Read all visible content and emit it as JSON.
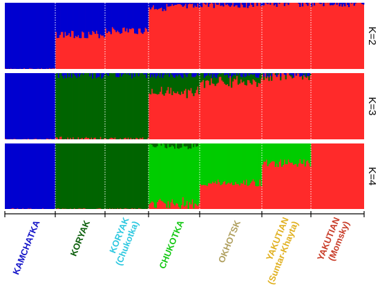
{
  "chart_data": {
    "type": "stacked-bar",
    "description_units": "admixture proportion (0-1) per individual",
    "populations": [
      {
        "label": "KAMCHATKA",
        "color": "#1414c8",
        "n": 38
      },
      {
        "label": "KORYAK",
        "color": "#0b5e0b",
        "n": 38
      },
      {
        "label": "KORYAK\n(Chukotka)",
        "color": "#2ec8e0",
        "n": 33
      },
      {
        "label": "CHUKOTKA",
        "color": "#14c814",
        "n": 38
      },
      {
        "label": "OKHOTSK",
        "color": "#b0a060",
        "n": 46
      },
      {
        "label": "YAKUTIAN\n(Suntar-Khayta)",
        "color": "#e0b020",
        "n": 38
      },
      {
        "label": "YAKUTIAN\n(Momsky)",
        "color": "#c83c28",
        "n": 40
      }
    ],
    "panels": [
      {
        "label": "K=2",
        "components": [
          "blue",
          "red"
        ],
        "colors": {
          "blue": "#0000d0",
          "red": "#ff2a2a"
        },
        "population_means": [
          {
            "blue": 1.0
          },
          {
            "blue": 0.48
          },
          {
            "blue": 0.42
          },
          {
            "blue": 0.07
          },
          {
            "blue": 0.02
          },
          {
            "blue": 0.01
          },
          {
            "blue": 0.01
          }
        ]
      },
      {
        "label": "K=3",
        "components": [
          "blue",
          "dkgreen",
          "red"
        ],
        "colors": {
          "blue": "#0000d0",
          "dkgreen": "#006400",
          "red": "#ff2a2a"
        },
        "population_means": [
          {
            "blue": 1.0,
            "dkgreen": 0.0
          },
          {
            "blue": 0.03,
            "dkgreen": 0.97
          },
          {
            "blue": 0.02,
            "dkgreen": 0.98
          },
          {
            "blue": 0.02,
            "dkgreen": 0.26
          },
          {
            "blue": 0.02,
            "dkgreen": 0.1
          },
          {
            "blue": 0.01,
            "dkgreen": 0.01
          },
          {
            "blue": 0.0,
            "dkgreen": 0.0
          }
        ]
      },
      {
        "label": "K=4",
        "components": [
          "blue",
          "dkgreen",
          "green",
          "red"
        ],
        "colors": {
          "blue": "#0000d0",
          "dkgreen": "#006400",
          "green": "#00cc00",
          "red": "#ff2a2a"
        },
        "population_means": [
          {
            "blue": 1.0,
            "dkgreen": 0.0,
            "green": 0.0
          },
          {
            "blue": 0.0,
            "dkgreen": 1.0,
            "green": 0.0
          },
          {
            "blue": 0.0,
            "dkgreen": 1.0,
            "green": 0.0
          },
          {
            "blue": 0.0,
            "dkgreen": 0.03,
            "green": 0.88
          },
          {
            "blue": 0.0,
            "dkgreen": 0.0,
            "green": 0.6
          },
          {
            "blue": 0.0,
            "dkgreen": 0.0,
            "green": 0.3
          },
          {
            "blue": 0.0,
            "dkgreen": 0.0,
            "green": 0.0
          }
        ]
      }
    ]
  }
}
